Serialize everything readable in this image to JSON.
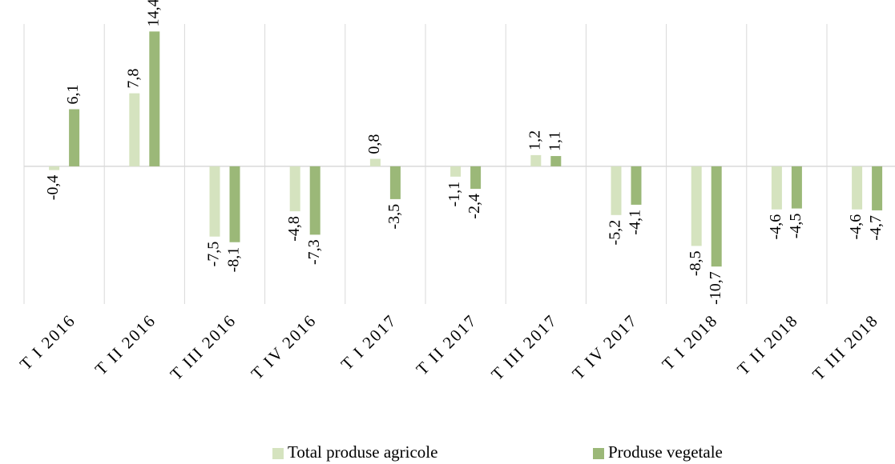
{
  "chart_data": {
    "type": "bar",
    "categories": [
      "T I 2016",
      "T II 2016",
      "T III 2016",
      "T IV 2016",
      "T I 2017",
      "T II 2017",
      "T III 2017",
      "T IV 2017",
      "T I 2018",
      "T II 2018",
      "T III 2018"
    ],
    "series": [
      {
        "name": "Total produse agricole",
        "color": "#d5e3bf",
        "values": [
          -0.4,
          7.8,
          -7.5,
          -4.8,
          0.8,
          -1.1,
          1.2,
          -5.2,
          -8.5,
          -4.6,
          -4.6
        ],
        "value_labels": [
          "-0,4",
          "7,8",
          "-7,5",
          "-4,8",
          "0,8",
          "-1,1",
          "1,2",
          "-5,2",
          "-8,5",
          "-4,6",
          "-4,6"
        ]
      },
      {
        "name": "Produse vegetale",
        "color": "#9bb878",
        "values": [
          6.1,
          14.4,
          -8.1,
          -7.3,
          -3.5,
          -2.4,
          1.1,
          -4.1,
          -10.7,
          -4.5,
          -4.7
        ],
        "value_labels": [
          "6,1",
          "14,4",
          "-8,1",
          "-7,3",
          "-3,5",
          "-2,4",
          "1,1",
          "-4,1",
          "-10,7",
          "-4,5",
          "-4,7"
        ]
      }
    ],
    "ylim": [
      -14.7,
      15.2
    ],
    "legend": "bottom"
  }
}
